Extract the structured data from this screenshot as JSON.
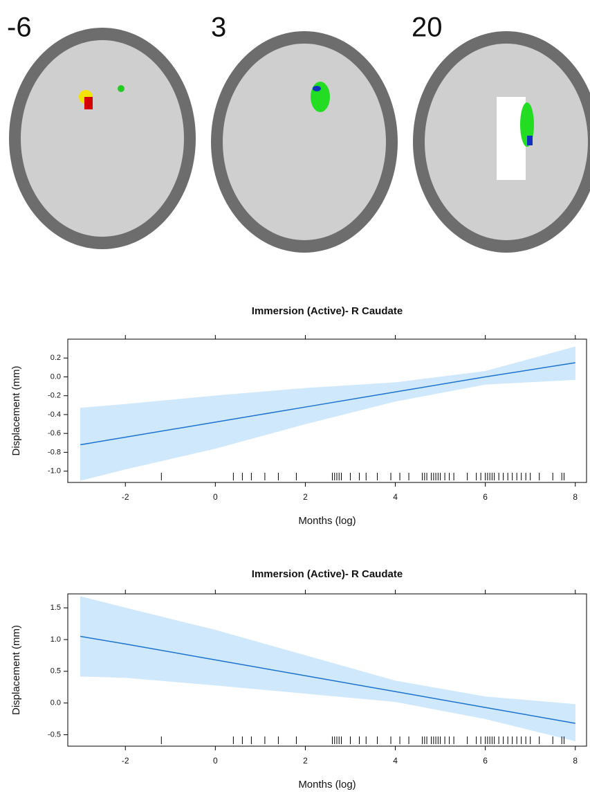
{
  "brain_slices": [
    "-6",
    "3",
    "20"
  ],
  "chart_data": [
    {
      "type": "line",
      "title": "Immersion (Active)- R Caudate",
      "x_label": "Months (log)",
      "y_label": "Displacement (mm)",
      "x": [
        -3,
        -2,
        0,
        2,
        4,
        6,
        8
      ],
      "series": [
        {
          "color": "#1a73d0",
          "values": [
            -0.72,
            -0.64,
            -0.48,
            -0.32,
            -0.16,
            0.0,
            0.15
          ]
        }
      ],
      "band": {
        "color": "#cfe8fb",
        "upper": [
          -0.33,
          -0.29,
          -0.2,
          -0.12,
          -0.06,
          0.06,
          0.32
        ],
        "lower": [
          -1.1,
          -0.98,
          -0.76,
          -0.5,
          -0.26,
          -0.08,
          -0.03
        ]
      },
      "rug_x": [
        -1.2,
        0.4,
        0.6,
        0.8,
        1.1,
        1.4,
        1.8,
        2.6,
        2.65,
        2.7,
        2.75,
        2.8,
        3.0,
        3.2,
        3.35,
        3.6,
        3.9,
        4.1,
        4.3,
        4.6,
        4.65,
        4.7,
        4.8,
        4.85,
        4.9,
        4.95,
        5.0,
        5.1,
        5.2,
        5.3,
        5.6,
        5.8,
        5.9,
        6.0,
        6.05,
        6.1,
        6.15,
        6.2,
        6.3,
        6.4,
        6.5,
        6.6,
        6.7,
        6.8,
        6.9,
        7.0,
        7.2,
        7.5,
        7.7,
        7.75
      ],
      "xlim": [
        -3.28,
        8.25
      ],
      "xticks": [
        -2,
        0,
        2,
        4,
        6,
        8
      ],
      "ylim": [
        -1.12,
        0.4
      ],
      "yticks": [
        {
          "value": -1,
          "label": "-1.0"
        },
        -0.8,
        -0.6,
        -0.4,
        -0.2,
        {
          "value": 0,
          "label": "0.0"
        },
        0.2
      ]
    },
    {
      "type": "line",
      "title": "Immersion (Active)- R Caudate",
      "x_label": "Months (log)",
      "y_label": "Displacement (mm)",
      "x": [
        -3,
        -2,
        0,
        2,
        4,
        6,
        8
      ],
      "series": [
        {
          "color": "#1a73d0",
          "values": [
            1.05,
            0.93,
            0.68,
            0.43,
            0.18,
            -0.07,
            -0.32
          ]
        }
      ],
      "band": {
        "color": "#cfe8fb",
        "upper": [
          1.68,
          1.5,
          1.15,
          0.75,
          0.35,
          0.1,
          -0.02
        ],
        "lower": [
          0.42,
          0.4,
          0.28,
          0.15,
          0.02,
          -0.25,
          -0.6
        ]
      },
      "rug_x": [
        -1.2,
        0.4,
        0.6,
        0.8,
        1.1,
        1.4,
        1.8,
        2.6,
        2.65,
        2.7,
        2.75,
        2.8,
        3.0,
        3.2,
        3.35,
        3.6,
        3.9,
        4.1,
        4.3,
        4.6,
        4.65,
        4.7,
        4.8,
        4.85,
        4.9,
        4.95,
        5.0,
        5.1,
        5.2,
        5.3,
        5.6,
        5.8,
        5.9,
        6.0,
        6.05,
        6.1,
        6.15,
        6.2,
        6.3,
        6.4,
        6.5,
        6.6,
        6.7,
        6.8,
        6.9,
        7.0,
        7.2,
        7.5,
        7.7,
        7.75
      ],
      "xlim": [
        -3.28,
        8.25
      ],
      "xticks": [
        -2,
        0,
        2,
        4,
        6,
        8
      ],
      "ylim": [
        -0.68,
        1.72
      ],
      "yticks": [
        -0.5,
        {
          "value": 0,
          "label": "0.0"
        },
        0.5,
        {
          "value": 1,
          "label": "1.0"
        },
        1.5
      ]
    }
  ]
}
